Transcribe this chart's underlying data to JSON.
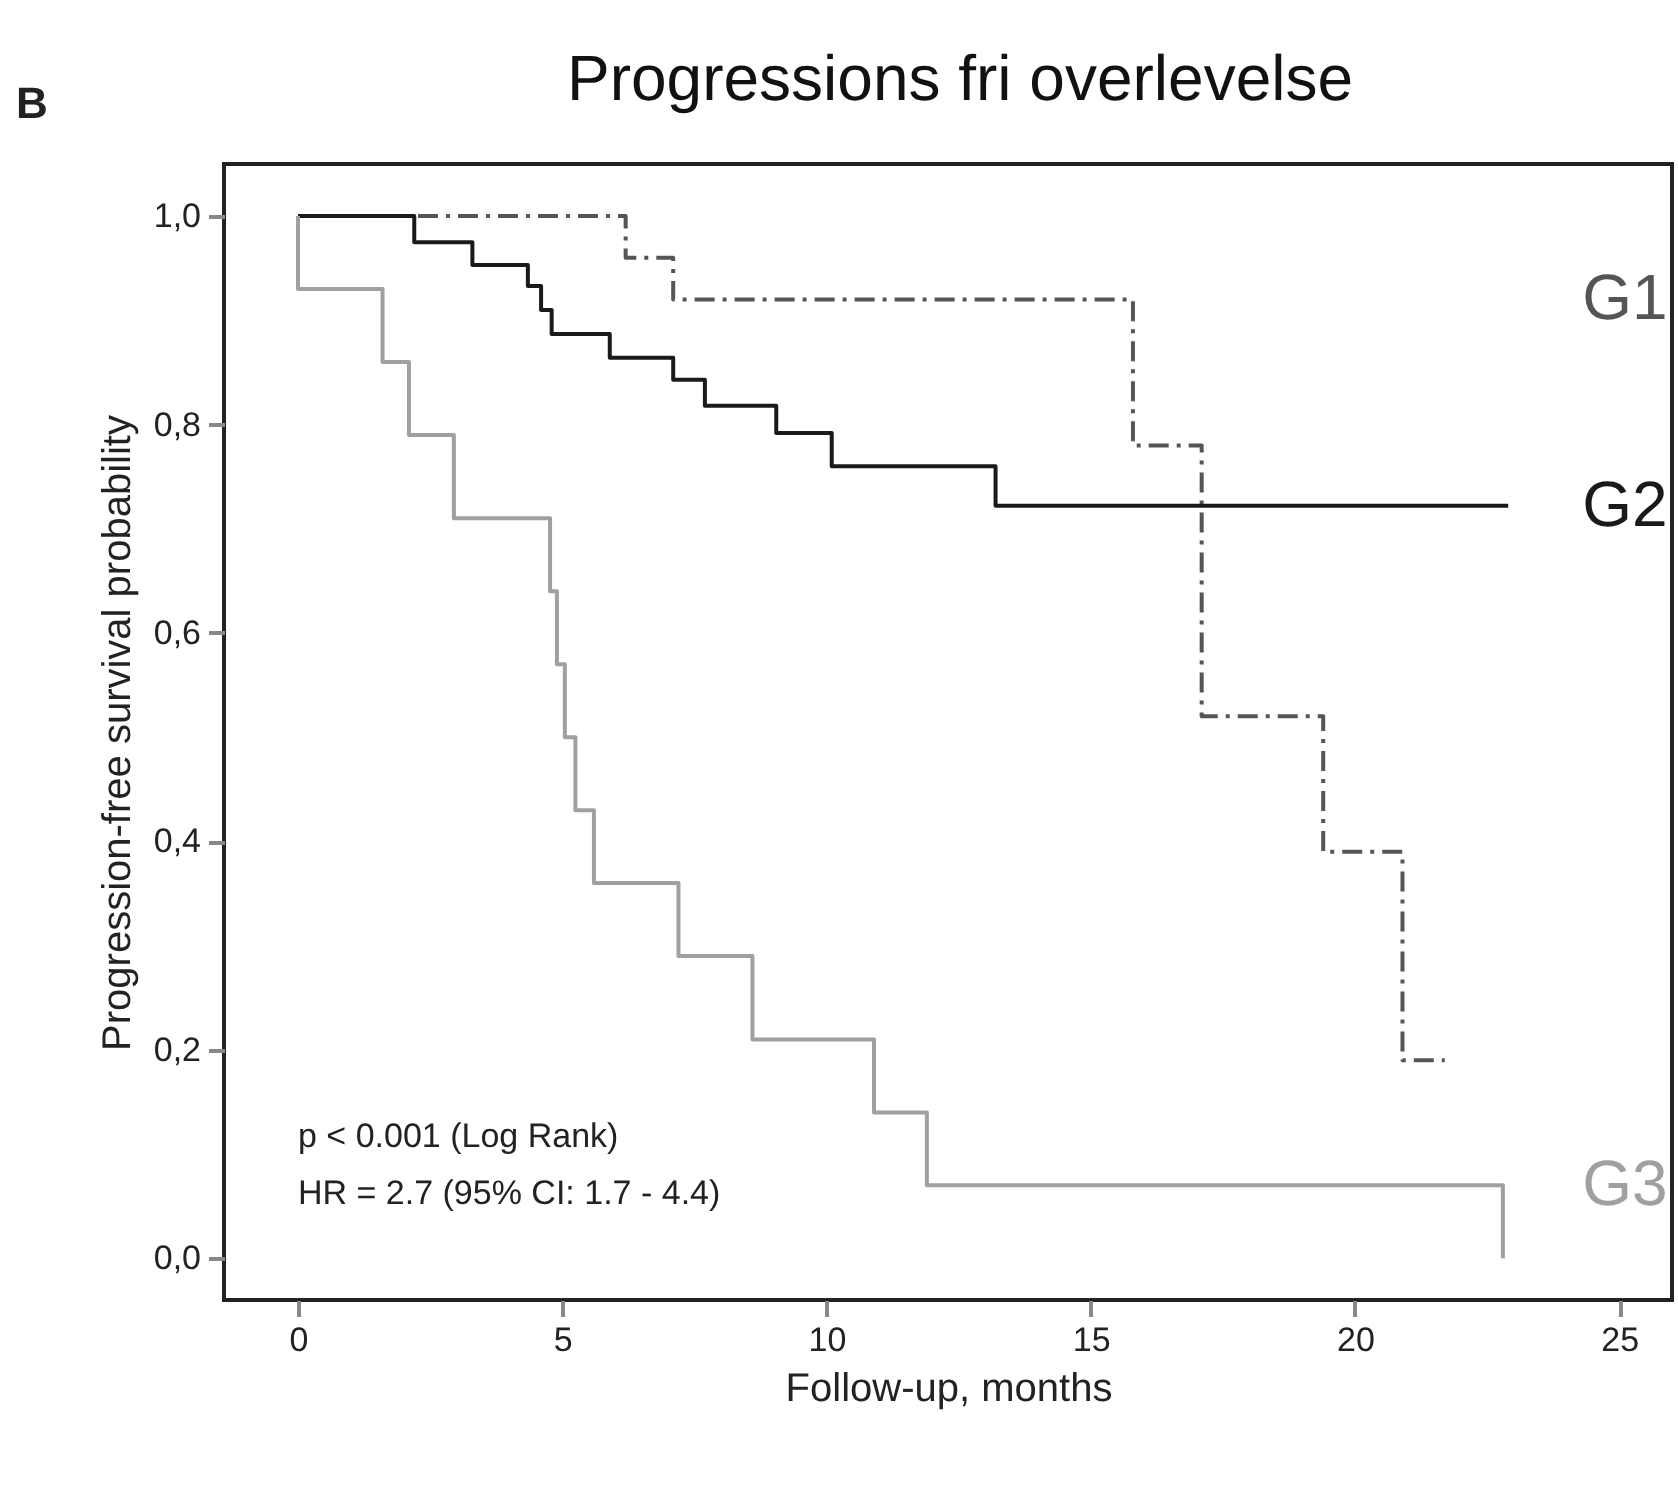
{
  "chart_data": {
    "type": "step",
    "title": "Progressions fri overlevelse",
    "xlabel": "Follow-up, months",
    "ylabel": "Progression-free survival probability",
    "annotations": [
      "B",
      "p < 0.001 (Log Rank)",
      "HR = 2.7 (95% CI: 1.7 - 4.4)"
    ],
    "xlim": [
      -1.4,
      26
    ],
    "xticks": [
      0,
      5,
      10,
      15,
      20,
      25
    ],
    "ylim": [
      -0.04,
      1.05
    ],
    "yticks": [
      {
        "value": 0,
        "label": "0,0"
      },
      {
        "value": 0.2,
        "label": "0,2"
      },
      {
        "value": 0.4,
        "label": "0,4"
      },
      {
        "value": 0.6,
        "label": "0,6"
      },
      {
        "value": 0.8,
        "label": "0,8"
      },
      {
        "value": 1,
        "label": "1,0"
      }
    ],
    "grid": false,
    "marker": "none",
    "series": [
      {
        "name": "G1",
        "color": "#555555",
        "line_style": "dashed",
        "x": [
          0,
          6.2,
          7.1,
          15.8,
          17.1,
          19.4,
          20.9,
          21.7
        ],
        "values": [
          1,
          0.96,
          0.92,
          0.78,
          0.52,
          0.39,
          0.19,
          0.19
        ]
      },
      {
        "name": "G2",
        "color": "#1a1a1a",
        "line_style": "solid",
        "x": [
          0,
          2.2,
          3.3,
          4.35,
          4.6,
          4.8,
          5.9,
          7.1,
          7.7,
          9.05,
          10.1,
          13.2,
          22.9
        ],
        "values": [
          1,
          0.975,
          0.953,
          0.933,
          0.91,
          0.887,
          0.864,
          0.843,
          0.818,
          0.792,
          0.76,
          0.722,
          0.722
        ]
      },
      {
        "name": "G3",
        "color": "#a0a0a0",
        "line_style": "solid",
        "x": [
          0,
          0,
          1.6,
          2.1,
          2.95,
          4.77,
          4.9,
          5.05,
          5.25,
          5.6,
          7.2,
          8.6,
          10.9,
          11.9,
          22.8,
          22.8
        ],
        "values": [
          1,
          0.93,
          0.86,
          0.79,
          0.71,
          0.64,
          0.57,
          0.5,
          0.43,
          0.36,
          0.29,
          0.21,
          0.14,
          0.07,
          0,
          0
        ]
      }
    ]
  }
}
